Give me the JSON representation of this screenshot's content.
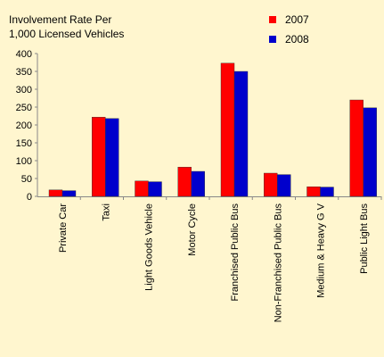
{
  "chart_data": {
    "type": "bar",
    "title": "Involvement Rate Per\n1,000 Licensed Vehicles",
    "categories": [
      "Private Car",
      "Taxi",
      "Light Goods Vehicle",
      "Motor Cycle",
      "Franchised Public Bus",
      "Non-Franchised Public Bus",
      "Medium & Heavy G V",
      "Public Light Bus"
    ],
    "series": [
      {
        "name": "2007",
        "color": "#ff0000",
        "values": [
          18,
          222,
          43,
          82,
          373,
          65,
          27,
          270
        ]
      },
      {
        "name": "2008",
        "color": "#0000cc",
        "values": [
          16,
          218,
          41,
          70,
          350,
          61,
          26,
          248
        ]
      }
    ],
    "ylim": [
      0,
      400
    ],
    "yticks": [
      0,
      50,
      100,
      150,
      200,
      250,
      300,
      350,
      400
    ],
    "grid": false,
    "legend_position": "top-right",
    "xlabel": "",
    "ylabel": ""
  },
  "colors": {
    "background": "#fff6cf",
    "axis": "#888888"
  }
}
